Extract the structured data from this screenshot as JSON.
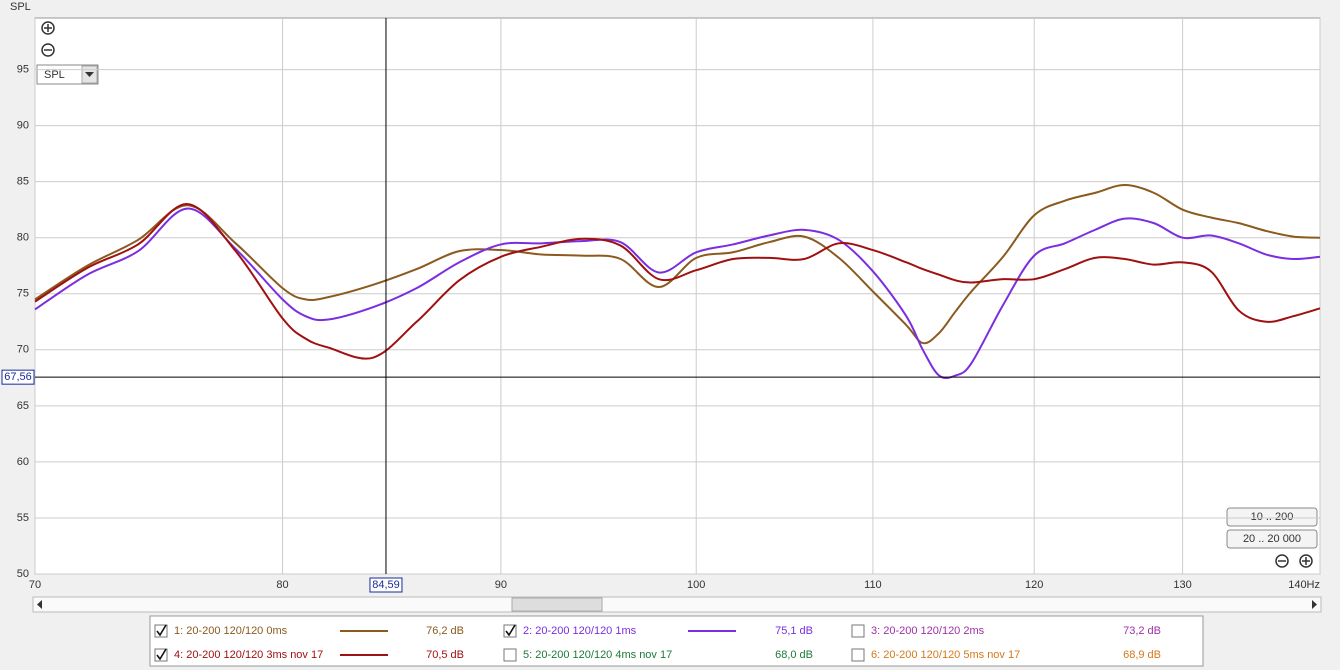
{
  "chart_data": {
    "type": "line",
    "ylabel": "SPL",
    "xscale": "log",
    "grid": true,
    "xlim": [
      70,
      140
    ],
    "ylim": [
      50,
      99.6
    ],
    "xticks": [
      70,
      80,
      90,
      100,
      110,
      120,
      130,
      {
        "value": 140,
        "label": "140Hz"
      }
    ],
    "yticks": [
      50,
      55,
      60,
      65,
      70,
      75,
      80,
      85,
      90,
      95
    ],
    "cursor": {
      "x": 84.59,
      "x_label": "84,59",
      "y": 67.56,
      "y_label": "67,56"
    },
    "x": [
      70,
      72,
      74,
      76,
      78,
      80,
      81,
      82,
      84,
      86,
      88,
      90,
      92,
      94,
      96,
      98,
      100,
      102,
      104,
      106,
      108,
      110,
      112,
      113,
      114,
      115,
      116,
      118,
      120,
      122,
      124,
      126,
      128,
      130,
      132,
      134,
      136,
      138,
      140
    ],
    "series": [
      {
        "name": "1: 20-200 120/120 0ms",
        "checked": true,
        "color": "#8b5a1e",
        "text_color": "#8b5a1e",
        "readout": "76,2 dB",
        "values": [
          74.5,
          77.5,
          79.8,
          82.9,
          79.5,
          75.5,
          74.5,
          74.7,
          75.8,
          77.2,
          78.8,
          78.9,
          78.5,
          78.4,
          78.1,
          75.6,
          78.2,
          78.7,
          79.6,
          80.1,
          78.2,
          75.2,
          72.2,
          70.6,
          71.5,
          73.4,
          75.2,
          78.3,
          82.0,
          83.3,
          84.0,
          84.7,
          84.0,
          82.5,
          81.8,
          81.3,
          80.6,
          80.1,
          80.0
        ]
      },
      {
        "name": "2: 20-200 120/120 1ms",
        "checked": true,
        "color": "#7a2ee0",
        "text_color": "#7a2ee0",
        "readout": "75,1 dB",
        "values": [
          73.6,
          76.7,
          78.8,
          82.6,
          79.0,
          74.5,
          73.0,
          72.7,
          73.8,
          75.5,
          77.8,
          79.4,
          79.5,
          79.7,
          79.6,
          76.9,
          78.7,
          79.4,
          80.2,
          80.7,
          79.8,
          77.0,
          73.0,
          70.0,
          67.7,
          67.7,
          68.8,
          74.0,
          78.4,
          79.5,
          80.7,
          81.7,
          81.3,
          80.0,
          80.2,
          79.5,
          78.5,
          78.1,
          78.3
        ]
      },
      {
        "name": "3: 20-200 120/120 2ms",
        "checked": false,
        "color": "#a030a8",
        "text_color": "#a030a8",
        "readout": "73,2 dB"
      },
      {
        "name": "4: 20-200 120/120 3ms nov 17",
        "checked": true,
        "color": "#a01010",
        "text_color": "#a01010",
        "readout": "70,5 dB",
        "values": [
          74.3,
          77.3,
          79.4,
          83.0,
          78.8,
          72.8,
          71.0,
          70.2,
          69.3,
          72.5,
          76.2,
          78.3,
          79.2,
          79.9,
          79.3,
          76.3,
          77.1,
          78.1,
          78.2,
          78.1,
          79.5,
          78.9,
          77.8,
          77.2,
          76.7,
          76.2,
          76.0,
          76.3,
          76.3,
          77.2,
          78.2,
          78.1,
          77.6,
          77.8,
          77.0,
          73.5,
          72.5,
          73.0,
          73.7
        ]
      },
      {
        "name": "5: 20-200 120/120 4ms nov 17",
        "checked": false,
        "color": "#1d7a3a",
        "text_color": "#1d7a3a",
        "readout": "68,0 dB"
      },
      {
        "name": "6: 20-200 120/120 5ms nov 17",
        "checked": false,
        "color": "#d47a1a",
        "text_color": "#d47a1a",
        "readout": "68,9 dB"
      }
    ]
  },
  "ui": {
    "dropdown": "SPL",
    "buttons": [
      "10 .. 200",
      "20 .. 20 000"
    ]
  }
}
